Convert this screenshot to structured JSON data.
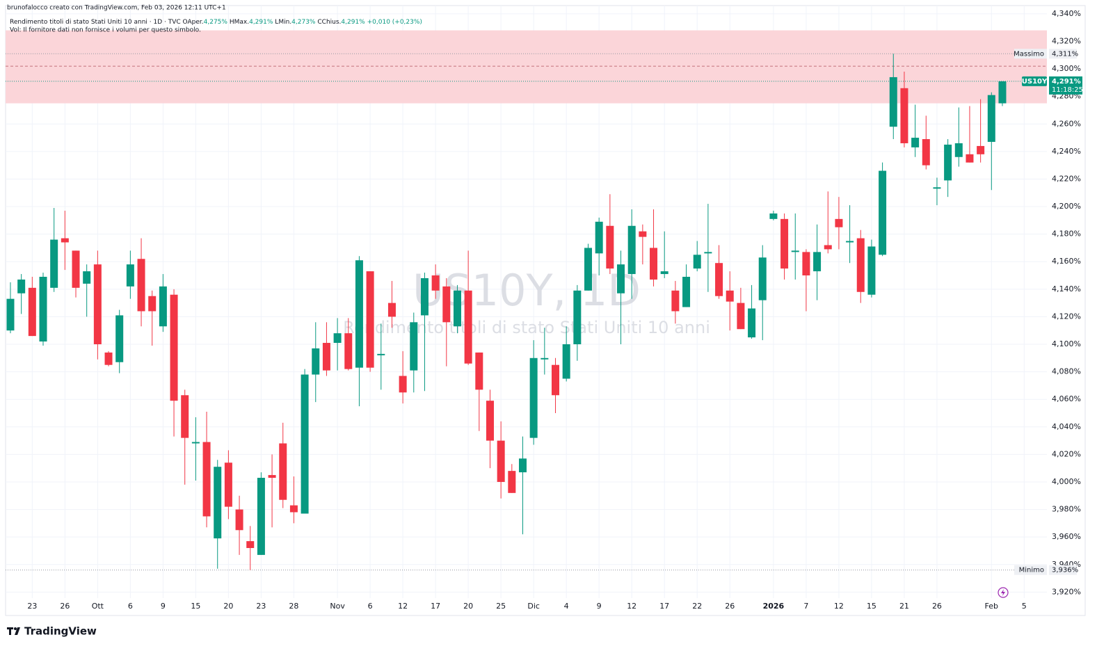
{
  "header": {
    "attribution": "brunofalocco creato con TradingView.com, Feb 03, 2026 12:11 UTC+1"
  },
  "footer": {
    "logo": "TradingView"
  },
  "chart_data": {
    "type": "candlestick",
    "legend": {
      "symbol": "Rendimento titoli di stato Stati Uniti 10 anni · 1D · TVC",
      "o_key": "O",
      "o_label": "Aper.",
      "o_value": "4,275%",
      "h_key": "H",
      "h_label": "Max.",
      "h_value": "4,291%",
      "l_key": "L",
      "l_label": "Min.",
      "l_value": "4,273%",
      "c_key": "C",
      "c_label": "Chius.",
      "c_value": "4,291%",
      "change": "+0,010 (+0,23%)",
      "volume_note": "Vol: Il fornitore dati non fornisce i volumi per questo simbolo."
    },
    "watermark": {
      "symbol": "US10Y, 1D",
      "description": "Rendimento titoli di stato Stati Uniti 10 anni"
    },
    "up_color": "#089981",
    "down_color": "#f23645",
    "categories": [
      null,
      null,
      "23",
      null,
      null,
      "26",
      null,
      null,
      "Ott",
      null,
      null,
      "6",
      null,
      null,
      "9",
      null,
      null,
      "15",
      null,
      null,
      "20",
      null,
      null,
      "23",
      null,
      null,
      "28",
      null,
      null,
      null,
      "Nov",
      null,
      null,
      "6",
      null,
      null,
      "12",
      null,
      null,
      "17",
      null,
      null,
      "20",
      null,
      null,
      "25",
      null,
      null,
      "Dic",
      null,
      null,
      "4",
      null,
      null,
      "9",
      null,
      null,
      "12",
      null,
      null,
      "17",
      null,
      null,
      "22",
      null,
      null,
      "26",
      null,
      null,
      null,
      "2026",
      null,
      null,
      "7",
      null,
      null,
      "12",
      null,
      null,
      "15",
      null,
      null,
      "21",
      null,
      null,
      "26",
      null,
      null,
      null,
      null,
      "Feb",
      null,
      null,
      "5"
    ],
    "open": [
      4.11,
      4.137,
      4.141,
      4.102,
      4.141,
      4.177,
      4.168,
      4.144,
      4.158,
      4.094,
      4.087,
      4.142,
      4.162,
      4.135,
      4.113,
      4.136,
      4.063,
      4.028,
      4.029,
      3.959,
      4.014,
      3.98,
      3.957,
      3.947,
      4.005,
      4.028,
      3.983,
      3.977,
      4.078,
      4.101,
      4.101,
      4.108,
      4.083,
      4.153,
      4.092,
      4.13,
      4.077,
      4.081,
      4.121,
      4.15,
      4.142,
      4.113,
      4.139,
      4.094,
      4.059,
      4.03,
      4.008,
      4.007,
      4.032,
      4.089,
      4.085,
      4.075,
      4.1,
      4.139,
      4.166,
      4.186,
      4.137,
      4.151,
      4.182,
      4.17,
      4.151,
      4.139,
      4.127,
      4.155,
      4.166,
      4.159,
      4.139,
      4.13,
      4.105,
      4.132,
      4.191,
      4.191,
      4.167,
      4.167,
      4.153,
      4.172,
      4.191,
      4.174,
      4.177,
      4.136,
      4.165,
      4.258,
      4.286,
      4.243,
      4.249,
      4.213,
      4.219,
      4.236,
      4.238,
      4.244,
      4.247,
      4.275,
      null,
      null
    ],
    "high": [
      4.145,
      4.151,
      4.149,
      4.152,
      4.199,
      4.197,
      4.168,
      4.158,
      4.168,
      4.095,
      4.125,
      4.168,
      4.177,
      4.139,
      4.151,
      4.14,
      4.067,
      4.047,
      4.051,
      4.016,
      4.023,
      3.99,
      3.968,
      4.007,
      4.02,
      4.043,
      4.004,
      4.082,
      4.116,
      4.116,
      4.119,
      4.119,
      4.164,
      4.153,
      4.115,
      4.146,
      4.095,
      4.123,
      4.152,
      4.158,
      4.148,
      4.143,
      4.168,
      4.094,
      4.067,
      4.044,
      4.013,
      4.033,
      4.103,
      4.112,
      4.09,
      4.113,
      4.143,
      4.173,
      4.192,
      4.209,
      4.168,
      4.198,
      4.187,
      4.198,
      4.182,
      4.146,
      4.158,
      4.175,
      4.202,
      4.172,
      4.153,
      4.141,
      4.143,
      4.172,
      4.197,
      4.195,
      4.195,
      4.169,
      4.187,
      4.211,
      4.207,
      4.201,
      4.183,
      4.176,
      4.232,
      4.311,
      4.298,
      4.274,
      4.266,
      4.221,
      4.249,
      4.272,
      4.273,
      4.278,
      4.283,
      4.291,
      null,
      null
    ],
    "low": [
      4.108,
      4.122,
      4.106,
      4.099,
      4.138,
      4.154,
      4.134,
      4.12,
      4.089,
      4.084,
      4.079,
      4.133,
      4.113,
      4.099,
      4.109,
      4.033,
      3.998,
      4.001,
      3.967,
      3.937,
      3.973,
      3.947,
      3.936,
      3.947,
      3.967,
      3.981,
      3.97,
      3.977,
      4.058,
      4.077,
      4.081,
      4.081,
      4.055,
      4.08,
      4.067,
      4.112,
      4.057,
      4.065,
      4.066,
      4.133,
      4.084,
      4.108,
      4.085,
      4.037,
      4.01,
      3.988,
      3.992,
      3.962,
      4.027,
      4.078,
      4.05,
      4.073,
      4.088,
      4.139,
      4.15,
      4.151,
      4.1,
      4.133,
      4.158,
      4.142,
      4.148,
      4.115,
      4.127,
      4.153,
      4.138,
      4.133,
      4.11,
      4.111,
      4.104,
      4.103,
      4.19,
      4.147,
      4.147,
      4.124,
      4.132,
      4.166,
      4.169,
      4.159,
      4.13,
      4.134,
      4.164,
      4.249,
      4.243,
      4.236,
      4.227,
      4.201,
      4.207,
      4.229,
      4.232,
      4.232,
      4.212,
      4.273,
      null,
      null
    ],
    "close": [
      4.133,
      4.147,
      4.106,
      4.149,
      4.176,
      4.174,
      4.141,
      4.153,
      4.1,
      4.085,
      4.121,
      4.158,
      4.124,
      4.124,
      4.142,
      4.059,
      4.032,
      4.029,
      3.975,
      4.011,
      3.982,
      3.965,
      3.952,
      4.003,
      4.003,
      3.987,
      3.978,
      4.078,
      4.097,
      4.081,
      4.108,
      4.082,
      4.161,
      4.083,
      4.093,
      4.12,
      4.065,
      4.116,
      4.148,
      4.139,
      4.116,
      4.139,
      4.086,
      4.067,
      4.03,
      4.0,
      3.992,
      4.017,
      4.09,
      4.09,
      4.063,
      4.1,
      4.139,
      4.17,
      4.189,
      4.155,
      4.158,
      4.186,
      4.178,
      4.147,
      4.153,
      4.124,
      4.149,
      4.165,
      4.167,
      4.135,
      4.131,
      4.111,
      4.126,
      4.163,
      4.195,
      4.155,
      4.168,
      4.15,
      4.167,
      4.169,
      4.185,
      4.175,
      4.138,
      4.171,
      4.226,
      4.294,
      4.246,
      4.25,
      4.23,
      4.214,
      4.245,
      4.246,
      4.232,
      4.238,
      4.281,
      4.291,
      null,
      null
    ],
    "ylim": [
      3.903,
      4.346
    ],
    "yticks": [
      {
        "value": 3.92,
        "label": "3,920%"
      },
      {
        "value": 3.94,
        "label": "3,940%"
      },
      {
        "value": 3.96,
        "label": "3,960%"
      },
      {
        "value": 3.98,
        "label": "3,980%"
      },
      {
        "value": 4.0,
        "label": "4,000%"
      },
      {
        "value": 4.02,
        "label": "4,020%"
      },
      {
        "value": 4.04,
        "label": "4,040%"
      },
      {
        "value": 4.06,
        "label": "4,060%"
      },
      {
        "value": 4.08,
        "label": "4,080%"
      },
      {
        "value": 4.1,
        "label": "4,100%"
      },
      {
        "value": 4.12,
        "label": "4,120%"
      },
      {
        "value": 4.14,
        "label": "4,140%"
      },
      {
        "value": 4.16,
        "label": "4,160%"
      },
      {
        "value": 4.18,
        "label": "4,180%"
      },
      {
        "value": 4.2,
        "label": "4,200%"
      },
      {
        "value": 4.22,
        "label": "4,220%"
      },
      {
        "value": 4.24,
        "label": "4,240%"
      },
      {
        "value": 4.26,
        "label": "4,260%"
      },
      {
        "value": 4.28,
        "label": "4,280%"
      },
      {
        "value": 4.3,
        "label": "4,300%"
      },
      {
        "value": 4.32,
        "label": "4,320%"
      },
      {
        "value": 4.34,
        "label": "4,340%"
      }
    ],
    "grid": true,
    "zone": {
      "range": [
        4.275,
        4.328
      ],
      "color": "#fbd5d9",
      "dashed_line": 4.302,
      "dashed_color": "#b0505c"
    },
    "max_marker": {
      "name": "Massimo",
      "price": {
        "value": 4.311,
        "label": "4,311%"
      }
    },
    "min_marker": {
      "name": "Minimo",
      "price": {
        "value": 3.936,
        "label": "3,936%"
      }
    },
    "last_marker": {
      "name": "US10Y",
      "price": {
        "value": 4.291,
        "label": "4,291%"
      },
      "countdown": "11:18:25"
    }
  }
}
